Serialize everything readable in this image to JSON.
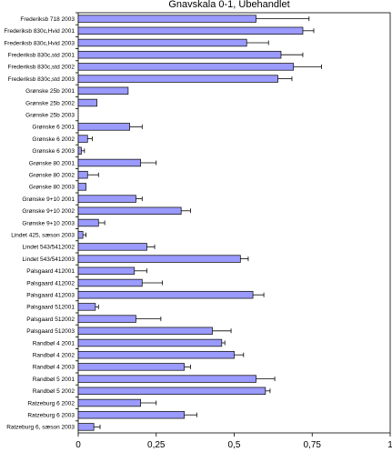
{
  "chart_data": {
    "type": "bar",
    "orientation": "horizontal",
    "title": "Gnavskala 0-1, Ubehandlet",
    "xlabel": "",
    "ylabel": "",
    "xlim": [
      0,
      1
    ],
    "xticks": [
      0,
      0.25,
      0.5,
      0.75,
      1
    ],
    "xtick_labels": [
      "0",
      "0,25",
      "0,5",
      "0,75",
      "1"
    ],
    "grid": false,
    "legend": "none",
    "bar_color": "#9a9aff",
    "bar_edge_color": "#1a1a1a",
    "categories": [
      "Frederiksb 718 2003",
      "Frederiksb 830c,Hvid 2001",
      "Frederiksb 830c,Hvid 2003",
      "Frederiksb 830c,std 2001",
      "Frederiksb 830c,std 2002",
      "Frederiksb 830c,std 2003",
      "Grønske 25b 2001",
      "Grønske 25b 2002",
      "Grønske 25b 2003",
      "Grønske 6 2001",
      "Grønske 6 2002",
      "Grønske 6 2003",
      "Grønske 80 2001",
      "Grønske 80 2002",
      "Grønske 80 2003",
      "Grønske 9+10 2001",
      "Grønske 9+10 2002",
      "Grønske 9+10 2003",
      "Lindet 425, sæson 2003",
      "Lindet 543/5412002",
      "Lindet 543/5412003",
      "Palsgaard 412001",
      "Palsgaard 412002",
      "Palsgaard 412003",
      "Palsgaard 512001",
      "Palsgaard 512002",
      "Palsgaard 512003",
      "Randbøl 4 2001",
      "Randbøl 4 2002",
      "Randbøl 4 2003",
      "Randbøl 5 2001",
      "Randbøl 5 2002",
      "Ratzeburg 6 2002",
      "Ratzeburg 6 2003",
      "Ratzeburg 6, sæson 2003"
    ],
    "values": [
      0.57,
      0.72,
      0.54,
      0.65,
      0.69,
      0.64,
      0.16,
      0.06,
      0.0,
      0.165,
      0.03,
      0.01,
      0.2,
      0.03,
      0.025,
      0.185,
      0.33,
      0.065,
      0.015,
      0.22,
      0.52,
      0.18,
      0.205,
      0.56,
      0.055,
      0.185,
      0.43,
      0.46,
      0.5,
      0.34,
      0.57,
      0.6,
      0.2,
      0.34,
      0.05
    ],
    "errors": [
      0.17,
      0.035,
      0.07,
      0.07,
      0.09,
      0.045,
      0.0,
      0.0,
      0.0,
      0.04,
      0.015,
      0.01,
      0.05,
      0.035,
      0.0,
      0.02,
      0.03,
      0.02,
      0.01,
      0.025,
      0.025,
      0.04,
      0.065,
      0.035,
      0.01,
      0.08,
      0.06,
      0.01,
      0.03,
      0.02,
      0.06,
      0.015,
      0.05,
      0.04,
      0.02
    ]
  }
}
